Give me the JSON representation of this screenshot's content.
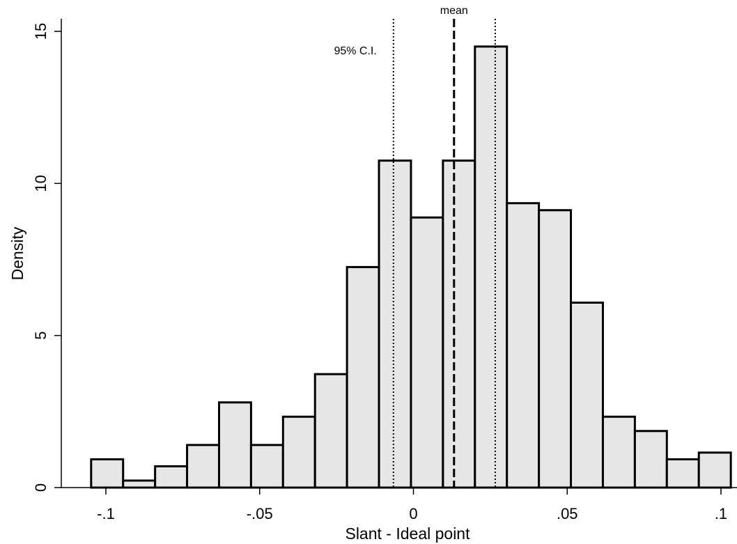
{
  "chart_data": {
    "type": "bar",
    "title": "",
    "xlabel": "Slant - Ideal point",
    "ylabel": "Density",
    "xlim": [
      -0.105,
      0.105
    ],
    "ylim": [
      0,
      15
    ],
    "x_ticks": [
      {
        "value": -0.1,
        "label": "-.1"
      },
      {
        "value": -0.05,
        "label": "-.05"
      },
      {
        "value": 0,
        "label": "0"
      },
      {
        "value": 0.05,
        "label": ".05"
      },
      {
        "value": 0.1,
        "label": ".1"
      }
    ],
    "y_ticks": [
      {
        "value": 0,
        "label": "0"
      },
      {
        "value": 5,
        "label": "5"
      },
      {
        "value": 10,
        "label": "10"
      },
      {
        "value": 15,
        "label": "15"
      }
    ],
    "bin_width": 0.0104,
    "bins": [
      {
        "start": -0.1048,
        "density": 0.93
      },
      {
        "start": -0.0944,
        "density": 0.23
      },
      {
        "start": -0.084,
        "density": 0.7
      },
      {
        "start": -0.0736,
        "density": 1.4
      },
      {
        "start": -0.0632,
        "density": 2.8
      },
      {
        "start": -0.0528,
        "density": 1.4
      },
      {
        "start": -0.0424,
        "density": 2.33
      },
      {
        "start": -0.032,
        "density": 3.73
      },
      {
        "start": -0.0216,
        "density": 7.25
      },
      {
        "start": -0.0112,
        "density": 10.75
      },
      {
        "start": -0.0008,
        "density": 8.88
      },
      {
        "start": 0.0096,
        "density": 10.75
      },
      {
        "start": 0.02,
        "density": 14.5
      },
      {
        "start": 0.0304,
        "density": 9.35
      },
      {
        "start": 0.0408,
        "density": 9.12
      },
      {
        "start": 0.0512,
        "density": 6.08
      },
      {
        "start": 0.0616,
        "density": 2.33
      },
      {
        "start": 0.072,
        "density": 1.86
      },
      {
        "start": 0.0824,
        "density": 0.93
      },
      {
        "start": 0.0928,
        "density": 1.15
      }
    ],
    "reference_lines": [
      {
        "name": "ci_low",
        "x": -0.0065,
        "style": "dotted"
      },
      {
        "name": "mean",
        "x": 0.0132,
        "style": "dashed"
      },
      {
        "name": "ci_high",
        "x": 0.0266,
        "style": "dotted"
      }
    ],
    "annotations": {
      "mean_label": "mean",
      "ci_label": "95% C.I."
    },
    "colors": {
      "bar_fill": "#e6e6e6",
      "bar_stroke": "#000000"
    },
    "grid": false,
    "legend": "none"
  }
}
